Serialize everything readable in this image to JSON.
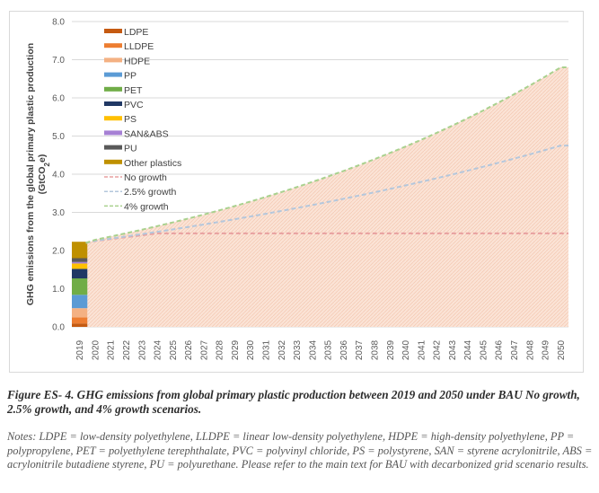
{
  "chart_data": {
    "type": "area",
    "title": "",
    "ylabel": "GHG emissions from the global primary plastic production",
    "ylabel_unit": "(GtCO2e)",
    "ylabel_unit_parts": {
      "pre": "(GtCO",
      "sub": "2",
      "post": "e)"
    },
    "xlabel": "",
    "ylim": [
      0,
      8
    ],
    "yticks": [
      0,
      1,
      2,
      3,
      4,
      5,
      6,
      7,
      8
    ],
    "ytick_labels": [
      "0.0",
      "1.0",
      "2.0",
      "3.0",
      "4.0",
      "5.0",
      "6.0",
      "7.0",
      "8.0"
    ],
    "grid": "horizontal",
    "legend_placement": "top-left",
    "x": [
      2019,
      2020,
      2021,
      2022,
      2023,
      2024,
      2025,
      2026,
      2027,
      2028,
      2029,
      2030,
      2031,
      2032,
      2033,
      2034,
      2035,
      2036,
      2037,
      2038,
      2039,
      2040,
      2041,
      2042,
      2043,
      2044,
      2045,
      2046,
      2047,
      2048,
      2049,
      2050
    ],
    "stacked_bar_2019": {
      "year": 2019,
      "segments": [
        {
          "name": "LDPE",
          "value": 0.09,
          "color": "#c55a11"
        },
        {
          "name": "LLDPE",
          "value": 0.16,
          "color": "#ed7d31"
        },
        {
          "name": "HDPE",
          "value": 0.24,
          "color": "#f4b183"
        },
        {
          "name": "PP",
          "value": 0.35,
          "color": "#5b9bd5"
        },
        {
          "name": "PET",
          "value": 0.43,
          "color": "#70ad47"
        },
        {
          "name": "PVC",
          "value": 0.25,
          "color": "#203864"
        },
        {
          "name": "PS",
          "value": 0.14,
          "color": "#ffc000"
        },
        {
          "name": "SAN&ABS",
          "value": 0.04,
          "color": "#a680d4"
        },
        {
          "name": "PU",
          "value": 0.1,
          "color": "#595959"
        },
        {
          "name": "Other plastics",
          "value": 0.43,
          "color": "#bf9000"
        }
      ]
    },
    "series": [
      {
        "name": "No growth",
        "style": "dashed",
        "color": "#e8a0a0",
        "start_value": 2.2,
        "plateau": 2.45,
        "end_value": 2.45
      },
      {
        "name": "2.5% growth",
        "style": "dashed",
        "color": "#b4c7dc",
        "start_value": 2.2,
        "rate": 0.025,
        "end_value": 4.75
      },
      {
        "name": "4% growth",
        "style": "dashed",
        "color": "#a9d18e",
        "start_value": 2.2,
        "rate": 0.04,
        "end_value": 6.8
      }
    ],
    "area_fill": {
      "color": "#fbe0d3",
      "pattern": "hatched",
      "upper_series": "4% growth"
    },
    "legend": [
      {
        "label": "LDPE",
        "kind": "bar",
        "color": "#c55a11"
      },
      {
        "label": "LLDPE",
        "kind": "bar",
        "color": "#ed7d31"
      },
      {
        "label": "HDPE",
        "kind": "bar",
        "color": "#f4b183"
      },
      {
        "label": "PP",
        "kind": "bar",
        "color": "#5b9bd5"
      },
      {
        "label": "PET",
        "kind": "bar",
        "color": "#70ad47"
      },
      {
        "label": "PVC",
        "kind": "bar",
        "color": "#203864"
      },
      {
        "label": "PS",
        "kind": "bar",
        "color": "#ffc000"
      },
      {
        "label": "SAN&ABS",
        "kind": "bar",
        "color": "#a680d4"
      },
      {
        "label": "PU",
        "kind": "bar",
        "color": "#595959"
      },
      {
        "label": "Other plastics",
        "kind": "bar",
        "color": "#bf9000"
      },
      {
        "label": "No growth",
        "kind": "dash",
        "color": "#e8a0a0"
      },
      {
        "label": "2.5% growth",
        "kind": "dash",
        "color": "#b4c7dc"
      },
      {
        "label": "4% growth",
        "kind": "dash",
        "color": "#a9d18e"
      }
    ]
  },
  "caption": "Figure ES- 4. GHG emissions from global primary plastic production between 2019 and 2050 under BAU No growth, 2.5% growth, and 4% growth scenarios.",
  "notes": "Notes: LDPE = low-density polyethylene, LLDPE = linear low-density polyethylene, HDPE = high-density polyethylene, PP = polypropylene, PET = polyethylene terephthalate, PVC = polyvinyl chloride, PS = polystyrene, SAN = styrene acrylonitrile, ABS = acrylonitrile butadiene styrene, PU = polyurethane. Please refer to the main text for BAU with decarbonized grid scenario results."
}
